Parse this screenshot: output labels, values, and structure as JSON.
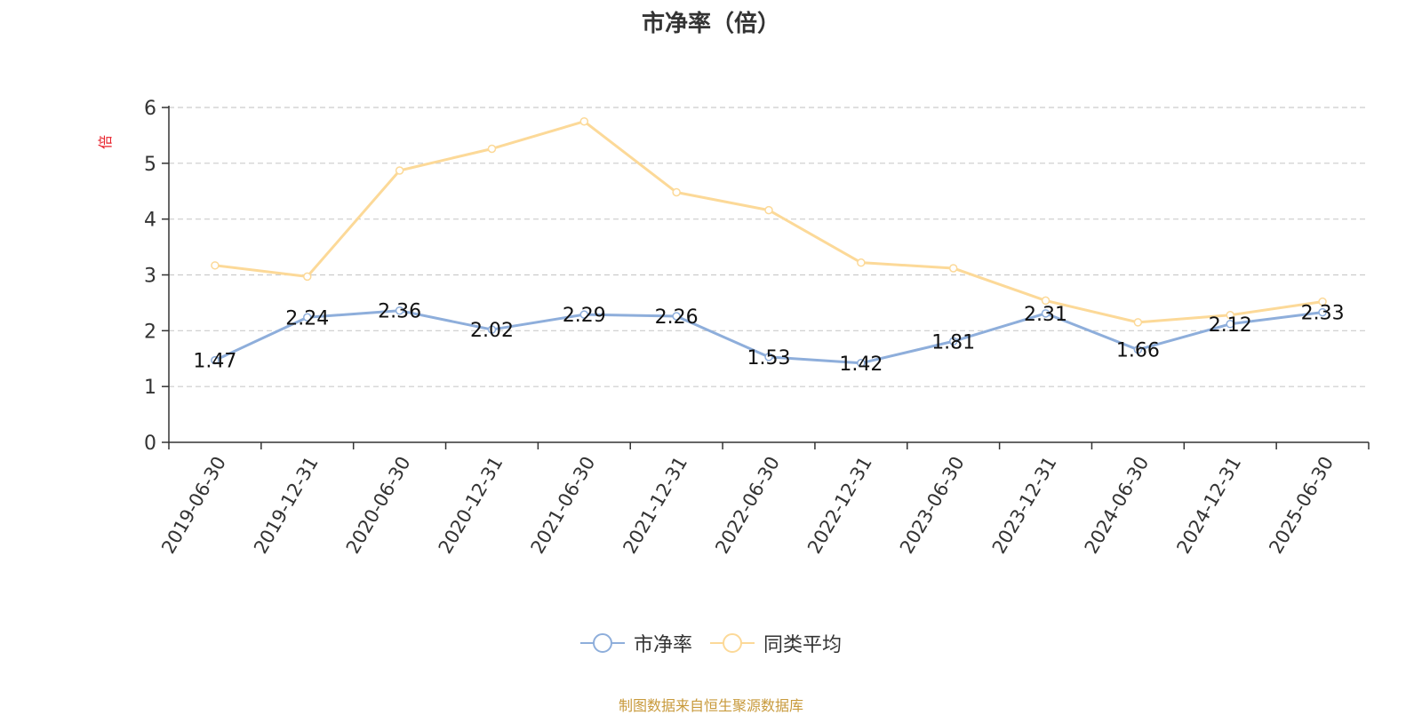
{
  "chart_data": {
    "type": "line",
    "title": "市净率（倍）",
    "ylabel": "倍",
    "ylim": [
      0,
      6
    ],
    "yticks": [
      0,
      1,
      2,
      3,
      4,
      5,
      6
    ],
    "grid": true,
    "legend_position": "bottom",
    "categories": [
      "2019-06-30",
      "2019-12-31",
      "2020-06-30",
      "2020-12-31",
      "2021-06-30",
      "2021-12-31",
      "2022-06-30",
      "2022-12-31",
      "2023-06-30",
      "2023-12-31",
      "2024-06-30",
      "2024-12-31",
      "2025-06-30"
    ],
    "series": [
      {
        "name": "市净率",
        "color": "#8eaedb",
        "show_labels": true,
        "values": [
          1.47,
          2.24,
          2.36,
          2.02,
          2.29,
          2.26,
          1.53,
          1.42,
          1.81,
          2.31,
          1.66,
          2.12,
          2.33
        ]
      },
      {
        "name": "同类平均",
        "color": "#fcd998",
        "show_labels": false,
        "values": [
          3.17,
          2.97,
          4.87,
          5.26,
          5.75,
          4.48,
          4.16,
          3.22,
          3.12,
          2.54,
          2.15,
          2.28,
          2.52
        ]
      }
    ]
  },
  "source_text": "制图数据来自恒生聚源数据库",
  "colors": {
    "ylabel": "#e8202a",
    "source": "#c89a3c",
    "axis": "#333333",
    "grid": "#cccccc"
  }
}
